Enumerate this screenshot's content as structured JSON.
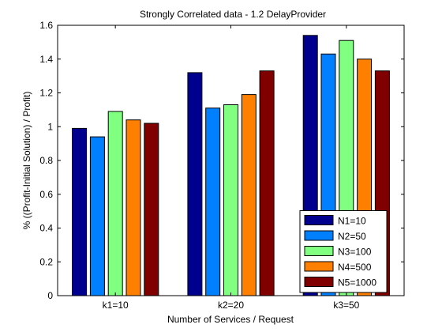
{
  "chart_data": {
    "type": "bar",
    "title": "Strongly Correlated data - 1.2 DelayProvider",
    "xlabel": "Number of Services / Request",
    "ylabel": "% ((Profit-Initial Solution) / Profit)",
    "categories": [
      "k1=10",
      "k2=20",
      "k3=50"
    ],
    "ylim": [
      0,
      1.6
    ],
    "yticks": [
      0,
      0.2,
      0.4,
      0.6,
      0.8,
      1,
      1.2,
      1.4,
      1.6
    ],
    "ytick_labels": [
      "0",
      "0.2",
      "0.4",
      "0.6",
      "0.8",
      "1",
      "1.2",
      "1.4",
      "1.6"
    ],
    "grid": false,
    "legend_position": "bottom-right",
    "series": [
      {
        "name": "N1=10",
        "color": "#00008F",
        "values": [
          0.99,
          1.32,
          1.54
        ]
      },
      {
        "name": "N2=50",
        "color": "#0080FF",
        "values": [
          0.94,
          1.11,
          1.43
        ]
      },
      {
        "name": "N3=100",
        "color": "#80FF80",
        "values": [
          1.09,
          1.13,
          1.51
        ]
      },
      {
        "name": "N4=500",
        "color": "#FF8000",
        "values": [
          1.04,
          1.19,
          1.4
        ]
      },
      {
        "name": "N5=1000",
        "color": "#800000",
        "values": [
          1.02,
          1.33,
          1.33
        ]
      }
    ]
  }
}
